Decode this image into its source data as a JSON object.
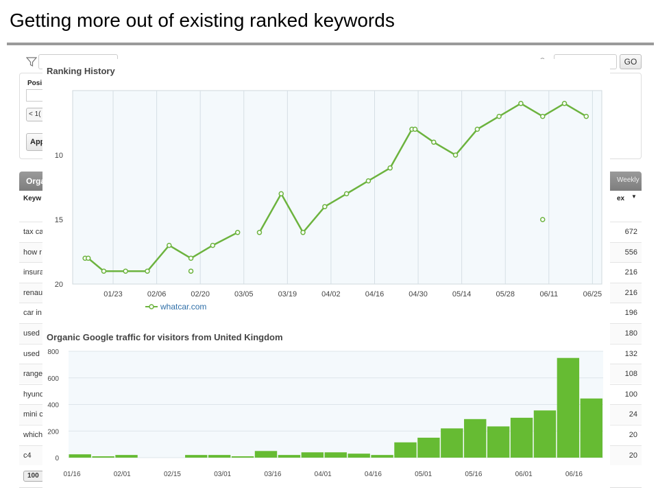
{
  "slide": {
    "title": "Getting more out of existing ranked keywords"
  },
  "background": {
    "go_label": "GO",
    "position_label": "Posi",
    "position_select": "< 1(",
    "apply_label": "App",
    "table_title": "Orga",
    "weekly_label": "Weekly",
    "col_keyword": "Keyw",
    "col_index": "ex",
    "rows": [
      {
        "kw": "tax ca",
        "num": "672"
      },
      {
        "kw": "how r",
        "num": "556"
      },
      {
        "kw": "insura",
        "num": "216"
      },
      {
        "kw": "renau",
        "num": "216"
      },
      {
        "kw": "car in",
        "num": "196"
      },
      {
        "kw": "used",
        "num": "180"
      },
      {
        "kw": "used",
        "num": "132"
      },
      {
        "kw": "range",
        "num": "108"
      },
      {
        "kw": "hyund",
        "num": "100"
      },
      {
        "kw": "mini c",
        "num": "24"
      },
      {
        "kw": "which",
        "num": "20"
      },
      {
        "kw": "c4",
        "num": "20"
      }
    ],
    "pager": "100"
  },
  "chart_data": [
    {
      "type": "line",
      "title": "Ranking History",
      "y_inverted": true,
      "ylim": [
        20,
        5
      ],
      "yticks": [
        10,
        15,
        20
      ],
      "x_ticks": [
        "01/23",
        "02/06",
        "02/20",
        "03/05",
        "03/19",
        "04/02",
        "04/16",
        "04/30",
        "05/14",
        "05/28",
        "06/11",
        "06/25"
      ],
      "series": [
        {
          "name": "whatcar.com",
          "color": "#6cb33e",
          "segments": [
            [
              {
                "x": "01/14",
                "y": 18
              },
              {
                "x": "01/15",
                "y": 18
              },
              {
                "x": "01/20",
                "y": 19
              },
              {
                "x": "01/27",
                "y": 19
              },
              {
                "x": "02/03",
                "y": 19
              },
              {
                "x": "02/10",
                "y": 17
              },
              {
                "x": "02/17",
                "y": 18
              },
              {
                "x": "02/24",
                "y": 17
              },
              {
                "x": "03/03",
                "y": 16
              }
            ],
            [
              {
                "x": "03/10",
                "y": 16
              },
              {
                "x": "03/17",
                "y": 13
              },
              {
                "x": "03/24",
                "y": 16
              },
              {
                "x": "03/31",
                "y": 14
              },
              {
                "x": "04/07",
                "y": 13
              },
              {
                "x": "04/14",
                "y": 12
              },
              {
                "x": "04/21",
                "y": 11
              },
              {
                "x": "04/28",
                "y": 8
              },
              {
                "x": "04/29",
                "y": 8
              },
              {
                "x": "05/05",
                "y": 9
              },
              {
                "x": "05/12",
                "y": 10
              },
              {
                "x": "05/19",
                "y": 8
              },
              {
                "x": "05/26",
                "y": 7
              },
              {
                "x": "06/02",
                "y": 6
              },
              {
                "x": "06/09",
                "y": 7
              },
              {
                "x": "06/16",
                "y": 6
              },
              {
                "x": "06/23",
                "y": 7
              }
            ]
          ],
          "isolated": [
            {
              "x": "02/17",
              "y": 19
            },
            {
              "x": "06/09",
              "y": 15
            }
          ]
        }
      ]
    },
    {
      "type": "bar",
      "title": "Organic Google traffic for visitors from United Kingdom",
      "ylim": [
        0,
        800
      ],
      "yticks": [
        0,
        200,
        400,
        600,
        800
      ],
      "x_ticks": [
        "01/16",
        "02/01",
        "02/15",
        "03/01",
        "03/16",
        "04/01",
        "04/16",
        "05/01",
        "05/16",
        "06/01",
        "06/16"
      ],
      "color": "#66bb33",
      "values": [
        25,
        10,
        20,
        0,
        0,
        20,
        20,
        10,
        50,
        20,
        40,
        40,
        30,
        20,
        115,
        150,
        220,
        290,
        235,
        300,
        355,
        750,
        445
      ]
    }
  ]
}
